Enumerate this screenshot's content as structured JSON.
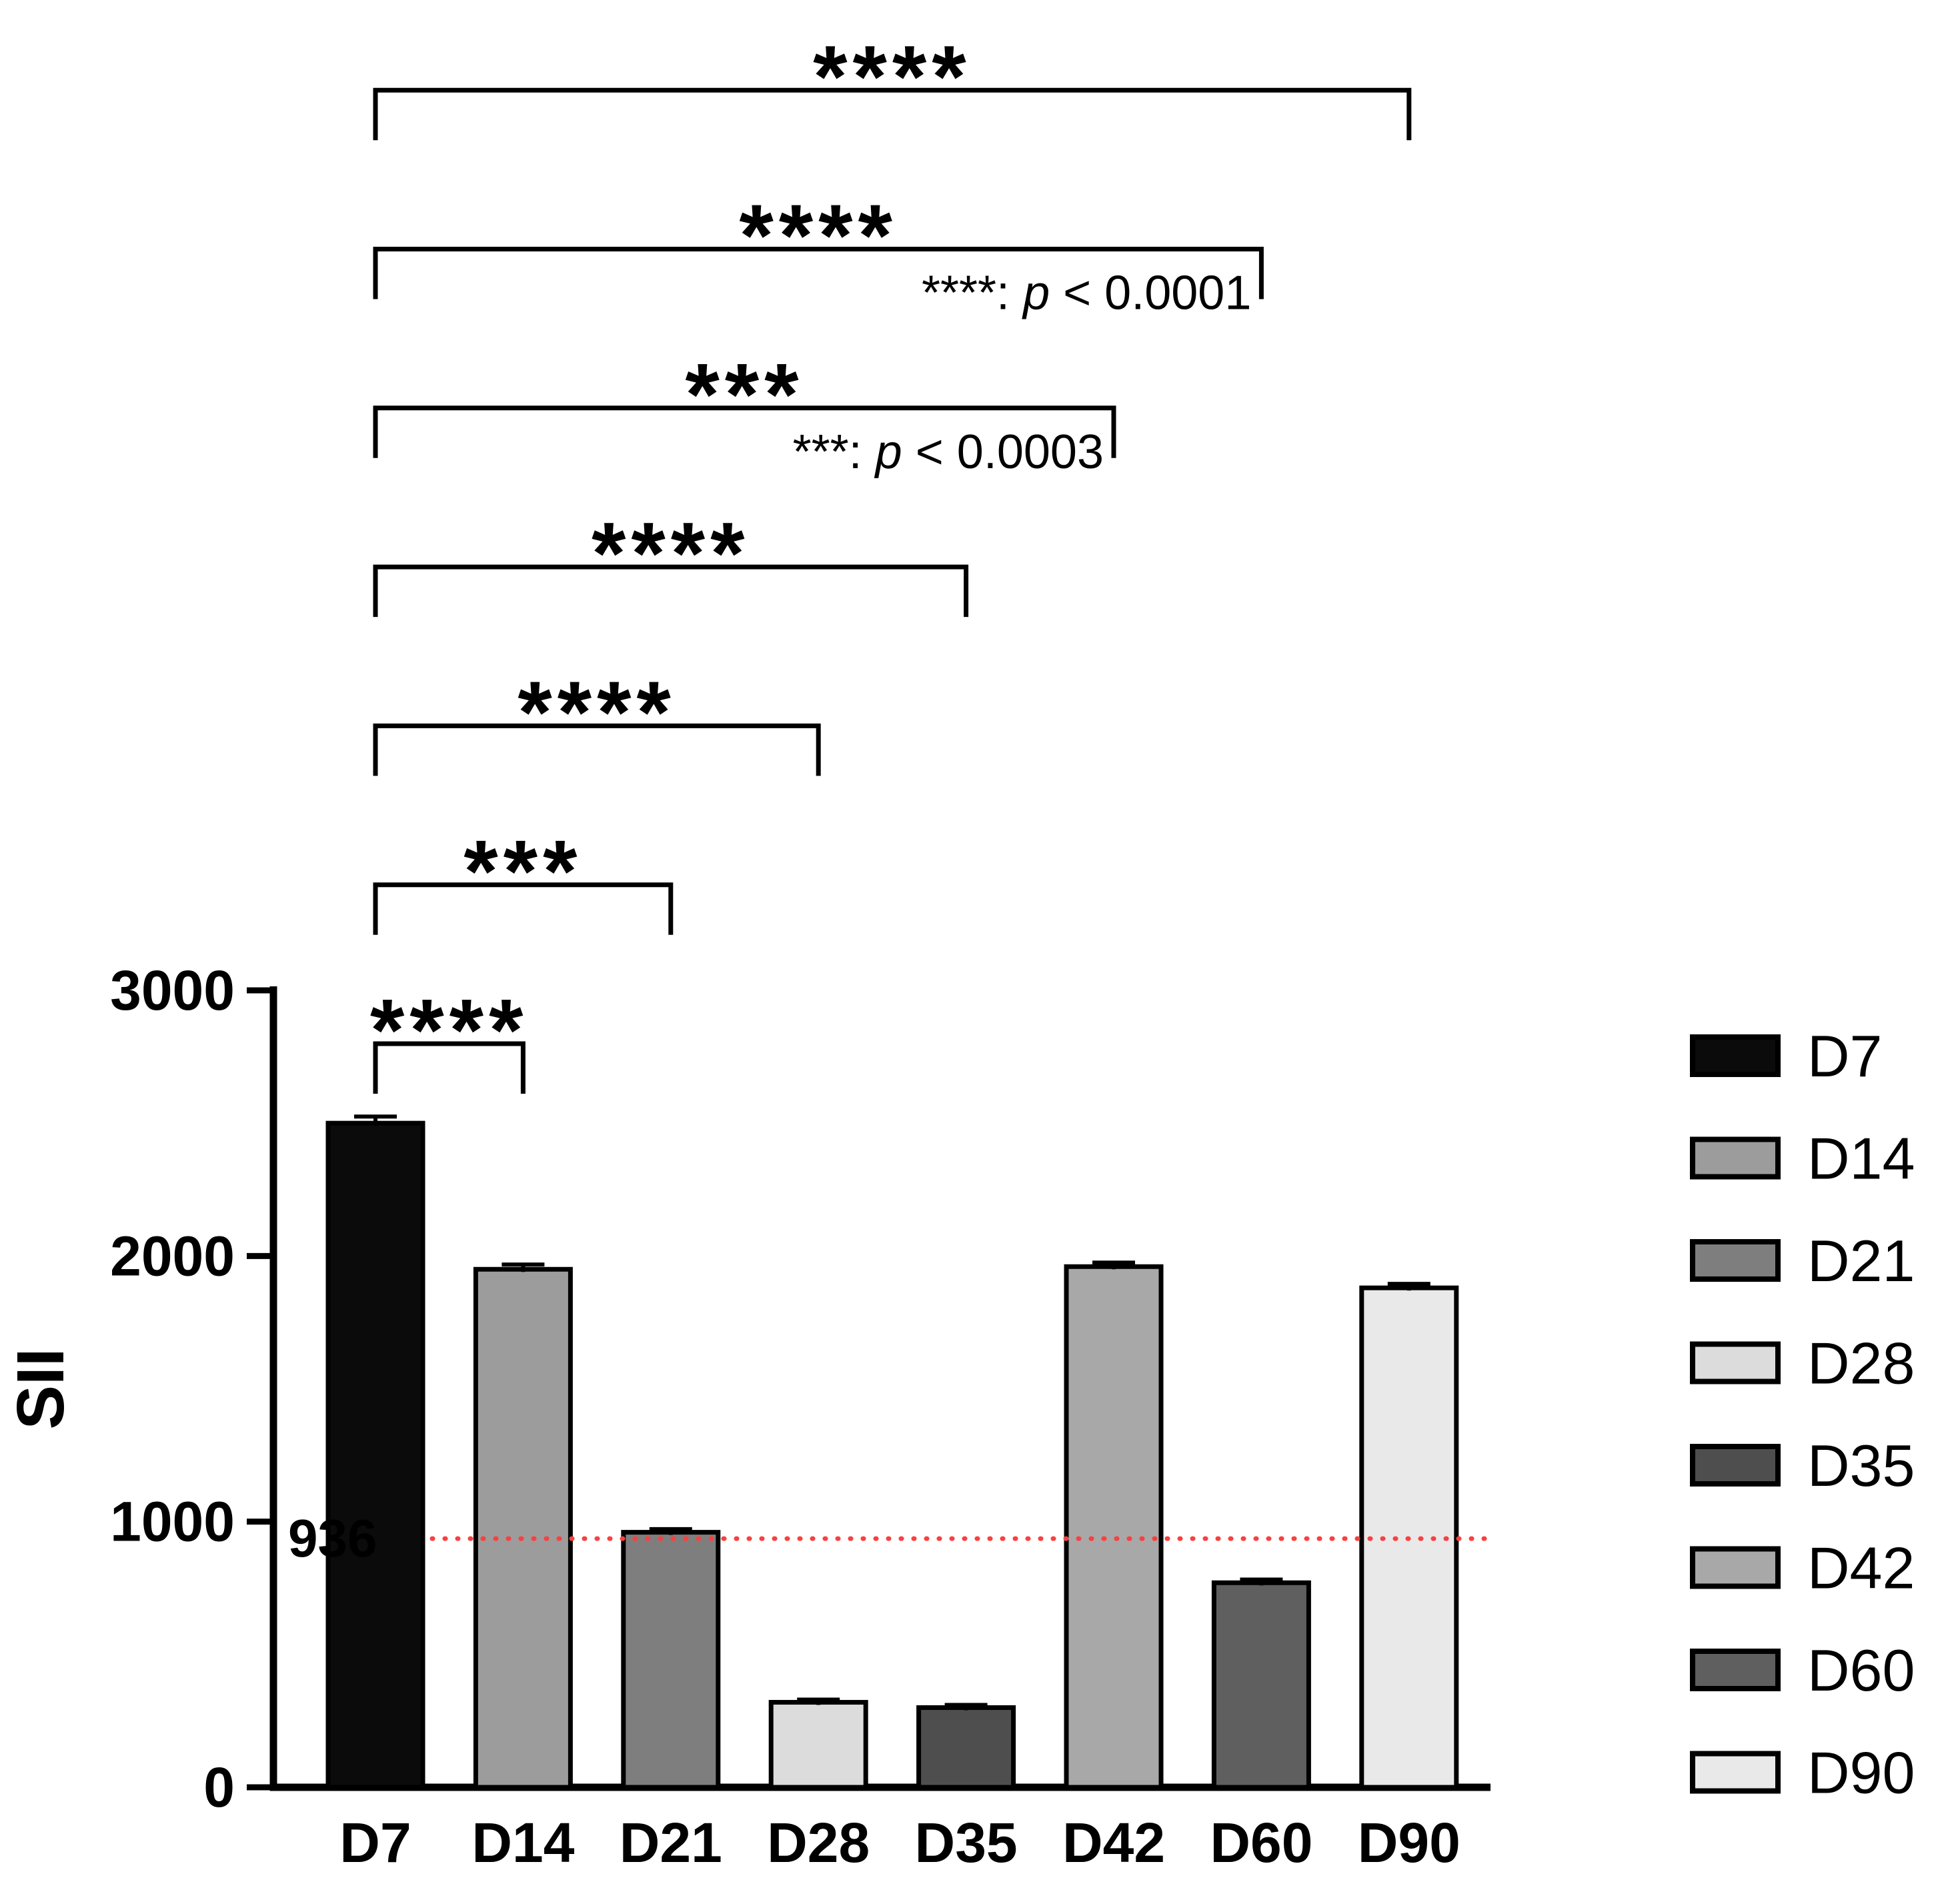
{
  "figure": {
    "background": "#ffffff",
    "axis_color": "#000000"
  },
  "chart_data": {
    "type": "bar",
    "title": "",
    "xlabel": "",
    "ylabel": "SII",
    "categories": [
      "D7",
      "D14",
      "D21",
      "D28",
      "D35",
      "D42",
      "D60",
      "D90"
    ],
    "values": [
      2500,
      1950,
      960,
      320,
      300,
      1960,
      770,
      1880
    ],
    "errors": [
      25,
      18,
      12,
      10,
      10,
      15,
      12,
      15
    ],
    "ylim": [
      0,
      3000
    ],
    "yticks": [
      0,
      1000,
      2000,
      3000
    ],
    "grid": false,
    "bar_colors": [
      "#0b0b0b",
      "#9c9c9c",
      "#7e7e7e",
      "#dcdcdc",
      "#4e4e4e",
      "#a8a8a8",
      "#5f5f5f",
      "#e9e9e9"
    ],
    "reference_line": {
      "value": 936,
      "label": "936",
      "color": "#f94040",
      "style": "dotted"
    },
    "legend": {
      "position": "right",
      "items": [
        {
          "label": "D7",
          "color": "#0b0b0b"
        },
        {
          "label": "D14",
          "color": "#9c9c9c"
        },
        {
          "label": "D21",
          "color": "#7e7e7e"
        },
        {
          "label": "D28",
          "color": "#dcdcdc"
        },
        {
          "label": "D35",
          "color": "#4e4e4e"
        },
        {
          "label": "D42",
          "color": "#a8a8a8"
        },
        {
          "label": "D60",
          "color": "#5f5f5f"
        },
        {
          "label": "D90",
          "color": "#e9e9e9"
        }
      ]
    },
    "significance_brackets": [
      {
        "from": "D7",
        "to": "D14",
        "label": "****"
      },
      {
        "from": "D7",
        "to": "D21",
        "label": "***"
      },
      {
        "from": "D7",
        "to": "D28",
        "label": "****"
      },
      {
        "from": "D7",
        "to": "D35",
        "label": "****"
      },
      {
        "from": "D7",
        "to": "D42",
        "label": "***",
        "note": "***: p < 0.0003"
      },
      {
        "from": "D7",
        "to": "D60",
        "label": "****",
        "note": "****: p < 0.0001"
      },
      {
        "from": "D7",
        "to": "D90",
        "label": "****"
      }
    ]
  }
}
